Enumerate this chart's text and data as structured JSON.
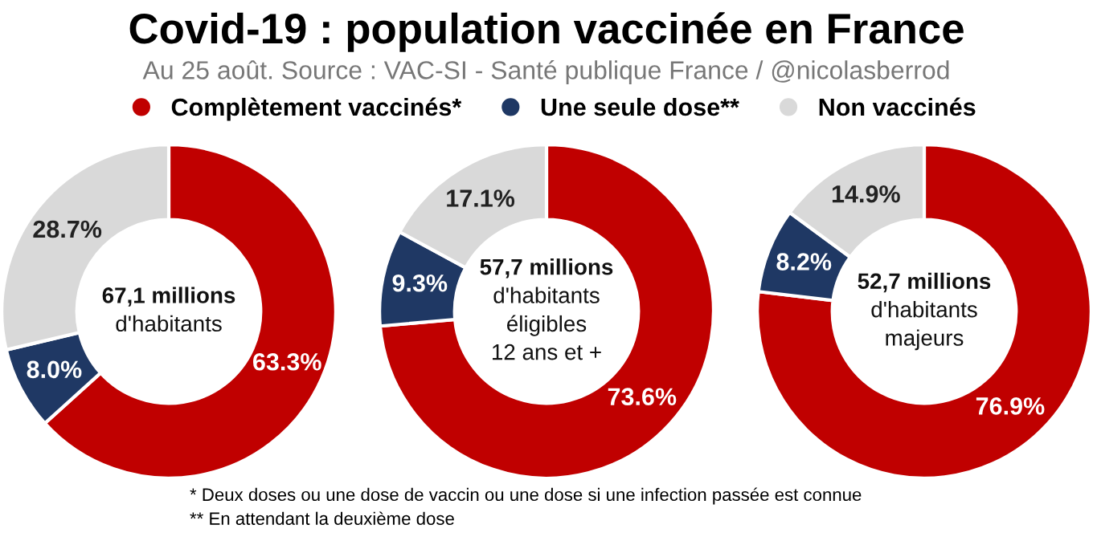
{
  "chart_data": [
    {
      "type": "donut",
      "title": "Covid-19 : population vaccinée en France",
      "subtitle": "Au 25 août. Source : VAC-SI - Santé publique France / @nicolasberrod",
      "categories": [
        "Complètement vaccinés*",
        "Une seule dose**",
        "Non vaccinés"
      ],
      "values": [
        63.3,
        8.0,
        28.7
      ],
      "value_labels": [
        "63.3%",
        "8.0%",
        "28.7%"
      ],
      "colors": [
        "#c00000",
        "#1f3864",
        "#d9d9d9"
      ],
      "legend": "top",
      "annotations": [
        "67,1 millions\nd'habitants",
        "* Deux doses ou une dose de vaccin ou une dose si une infection passée est connue",
        "** En attendant la deuxième dose"
      ]
    },
    {
      "type": "donut",
      "categories": [
        null,
        null,
        null
      ],
      "values": [
        73.6,
        9.3,
        17.1
      ],
      "value_labels": [
        "73.6%",
        "9.3%",
        "17.1%"
      ],
      "colors": [
        "#c00000",
        "#1f3864",
        "#d9d9d9"
      ],
      "annotations": [
        "57,7 millions\nd'habitants\néligibles\n12 ans et +"
      ]
    },
    {
      "type": "donut",
      "categories": [
        null,
        null,
        null
      ],
      "values": [
        76.9,
        8.2,
        14.9
      ],
      "value_labels": [
        "76.9%",
        "8.2%",
        "14.9%"
      ],
      "colors": [
        "#c00000",
        "#1f3864",
        "#d9d9d9"
      ],
      "annotations": [
        "52,7 millions\nd'habitants\nmajeurs"
      ]
    }
  ]
}
